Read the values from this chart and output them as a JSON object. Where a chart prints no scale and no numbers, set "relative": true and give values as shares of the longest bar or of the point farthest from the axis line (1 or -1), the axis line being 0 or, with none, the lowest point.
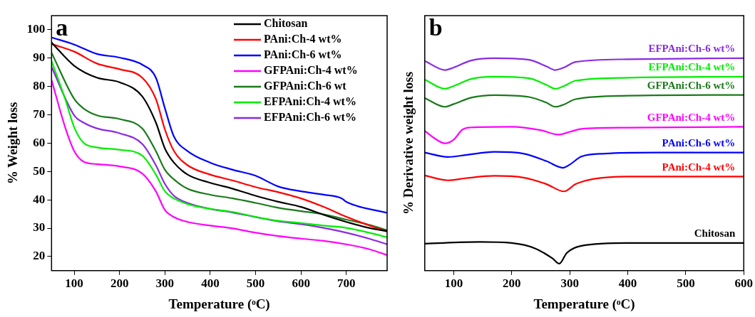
{
  "chart_data": [
    {
      "type": "line",
      "annotations": [
        "a"
      ],
      "xlabel": "Temperature (ᵒC)",
      "ylabel": "% Weight loss",
      "xlim": [
        50,
        790
      ],
      "xticks": [
        100,
        200,
        300,
        400,
        500,
        600,
        700
      ],
      "ylim": [
        15,
        105
      ],
      "yticks": [
        20,
        30,
        40,
        50,
        60,
        70,
        80,
        90,
        100
      ],
      "legend": "top right",
      "series": [
        {
          "name": "Chitosan",
          "color": "#000000",
          "x": [
            50,
            100,
            150,
            200,
            250,
            280,
            300,
            320,
            350,
            400,
            450,
            500,
            550,
            600,
            650,
            700,
            750,
            790
          ],
          "values": [
            95.5,
            87.3,
            83.1,
            81.5,
            76.5,
            67.3,
            58.1,
            53.1,
            48.9,
            46.0,
            43.9,
            41.4,
            39.3,
            37.5,
            34.7,
            32.2,
            30.1,
            28.9
          ]
        },
        {
          "name": "PAni:Ch-4 wt%",
          "color": "#ff0000",
          "x": [
            50,
            100,
            150,
            200,
            250,
            280,
            300,
            320,
            350,
            400,
            450,
            500,
            550,
            600,
            650,
            700,
            750,
            790
          ],
          "values": [
            95.0,
            92.3,
            88.1,
            86.1,
            83.1,
            75.6,
            64.8,
            57.2,
            52.2,
            48.9,
            46.8,
            44.5,
            42.7,
            40.5,
            37.5,
            34.0,
            31.0,
            28.8
          ]
        },
        {
          "name": "PAni:Ch-6 wt%",
          "color": "#0000ff",
          "x": [
            50,
            100,
            150,
            200,
            250,
            280,
            300,
            320,
            350,
            400,
            450,
            500,
            550,
            600,
            650,
            690,
            700,
            790
          ],
          "values": [
            97.3,
            94.8,
            91.5,
            90.2,
            87.7,
            83.1,
            72.3,
            62.3,
            57.2,
            53.1,
            50.6,
            48.5,
            44.7,
            43.0,
            41.8,
            40.5,
            39.3,
            35.4
          ]
        },
        {
          "name": "GFPAni:Ch-4 wt%",
          "color": "#ff00ff",
          "x": [
            50,
            80,
            100,
            120,
            150,
            200,
            250,
            280,
            300,
            320,
            350,
            400,
            450,
            500,
            550,
            600,
            650,
            700,
            750,
            790
          ],
          "values": [
            82.3,
            65.6,
            57.2,
            53.5,
            52.6,
            51.8,
            49.3,
            43.0,
            36.4,
            33.9,
            32.2,
            30.9,
            29.9,
            28.4,
            27.2,
            26.3,
            25.5,
            24.3,
            22.6,
            20.5
          ]
        },
        {
          "name": "GFPAni:Ch-6 wt",
          "color": "#1a7a1a",
          "x": [
            50,
            100,
            120,
            150,
            200,
            250,
            280,
            300,
            320,
            350,
            400,
            450,
            500,
            550,
            600,
            650,
            700,
            750,
            790
          ],
          "values": [
            91.9,
            75.6,
            72.3,
            69.8,
            68.5,
            65.2,
            57.2,
            50.6,
            47.2,
            43.9,
            41.8,
            40.5,
            38.9,
            37.2,
            36.0,
            34.9,
            33.0,
            31.2,
            29.3
          ]
        },
        {
          "name": "EFPAni:Ch-4 wt%",
          "color": "#00ee00",
          "x": [
            50,
            80,
            100,
            120,
            150,
            200,
            250,
            280,
            300,
            320,
            350,
            400,
            450,
            500,
            550,
            600,
            650,
            700,
            750,
            790
          ],
          "values": [
            89.0,
            75.6,
            65.6,
            60.2,
            58.5,
            57.7,
            55.6,
            48.9,
            43.0,
            40.5,
            38.5,
            36.8,
            35.7,
            34.0,
            32.6,
            31.8,
            30.9,
            30.1,
            28.4,
            26.8
          ]
        },
        {
          "name": "EFPAni:Ch-6 wt%",
          "color": "#8a2be2",
          "x": [
            50,
            100,
            120,
            150,
            200,
            250,
            280,
            300,
            320,
            350,
            400,
            450,
            500,
            550,
            600,
            650,
            700,
            750,
            790
          ],
          "values": [
            86.9,
            69.8,
            67.3,
            65.2,
            63.5,
            59.7,
            52.2,
            45.6,
            41.4,
            38.9,
            36.8,
            35.5,
            33.9,
            32.4,
            31.4,
            30.1,
            28.4,
            26.3,
            24.3
          ]
        }
      ]
    },
    {
      "type": "line",
      "annotations": [
        "b"
      ],
      "xlabel": "Temperature (ᵒC)",
      "ylabel": "% Derivative weight loss",
      "relative": true,
      "tick_labels": "x",
      "xlim": [
        50,
        600
      ],
      "xticks": [
        100,
        200,
        300,
        400,
        500,
        600
      ],
      "series": [
        {
          "name": "EFPAni:Ch-6 wt%",
          "color": "#8a2be2",
          "x": [
            50,
            85,
            100,
            130,
            170,
            230,
            260,
            275,
            290,
            310,
            400,
            600
          ],
          "values": [
            0.987,
            0.944,
            0.956,
            0.989,
            1.0,
            0.992,
            0.961,
            0.944,
            0.956,
            0.982,
            0.995,
            1.0
          ]
        },
        {
          "name": "EFPAni:Ch-4 wt%",
          "color": "#00ee00",
          "x": [
            50,
            85,
            100,
            130,
            170,
            230,
            260,
            275,
            290,
            310,
            400,
            600
          ],
          "values": [
            0.899,
            0.856,
            0.869,
            0.902,
            0.913,
            0.905,
            0.874,
            0.856,
            0.869,
            0.894,
            0.908,
            0.913
          ]
        },
        {
          "name": "GFPAni:Ch-6 wt%",
          "color": "#1a7a1a",
          "x": [
            50,
            85,
            100,
            130,
            170,
            230,
            260,
            275,
            290,
            310,
            400,
            600
          ],
          "values": [
            0.812,
            0.771,
            0.784,
            0.814,
            0.826,
            0.817,
            0.79,
            0.771,
            0.782,
            0.807,
            0.823,
            0.827
          ]
        },
        {
          "name": "GFPAni:Ch-4 wt%",
          "color": "#ff00ff",
          "x": [
            50,
            70,
            85,
            100,
            115,
            130,
            200,
            250,
            280,
            300,
            320,
            400,
            600
          ],
          "values": [
            0.658,
            0.617,
            0.599,
            0.617,
            0.664,
            0.674,
            0.677,
            0.661,
            0.64,
            0.653,
            0.667,
            0.673,
            0.677
          ]
        },
        {
          "name": "PAni:Ch-6 wt%",
          "color": "#0000ff",
          "x": [
            50,
            90,
            120,
            170,
            220,
            260,
            288,
            300,
            320,
            360,
            450,
            600
          ],
          "values": [
            0.556,
            0.535,
            0.544,
            0.559,
            0.551,
            0.515,
            0.484,
            0.499,
            0.537,
            0.551,
            0.556,
            0.556
          ]
        },
        {
          "name": "PAni:Ch-4 wt%",
          "color": "#ff0000",
          "x": [
            50,
            90,
            120,
            170,
            220,
            260,
            290,
            310,
            340,
            400,
            600
          ],
          "values": [
            0.448,
            0.425,
            0.435,
            0.446,
            0.438,
            0.407,
            0.373,
            0.407,
            0.431,
            0.443,
            0.443
          ]
        },
        {
          "name": "Chitosan",
          "color": "#000000",
          "x": [
            50,
            145,
            200,
            240,
            270,
            282,
            295,
            320,
            400,
            600
          ],
          "values": [
            0.127,
            0.135,
            0.13,
            0.105,
            0.058,
            0.033,
            0.084,
            0.117,
            0.13,
            0.13
          ]
        }
      ]
    }
  ]
}
